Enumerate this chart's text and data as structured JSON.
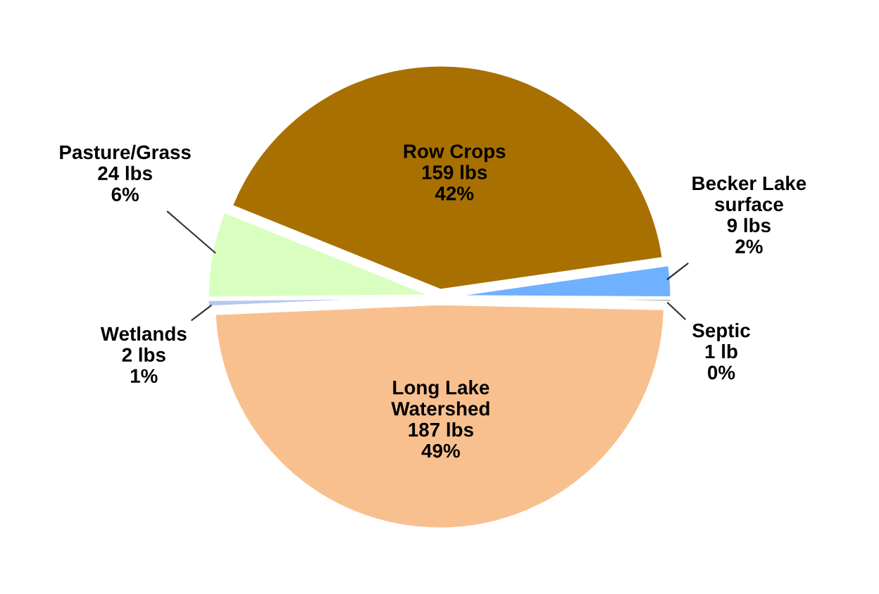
{
  "chart_data": {
    "type": "pie",
    "categories": [
      "Row Crops",
      "Becker Lake\nsurface",
      "Septic",
      "Long Lake\nWatershed",
      "Wetlands",
      "Pasture/Grass"
    ],
    "values": [
      159,
      9,
      1,
      187,
      2,
      24
    ],
    "value_labels": [
      "159 lbs\n42%",
      "9 lbs\n2%",
      "1 lb\n0%",
      "187 lbs\n49%",
      "2 lbs\n1%",
      "24 lbs\n6%"
    ],
    "colors": [
      "#a87000",
      "#6fb0ff",
      "#a0a0a0",
      "#f9c08f",
      "#b4c8f0",
      "#d9ffc0"
    ],
    "legend": false
  }
}
